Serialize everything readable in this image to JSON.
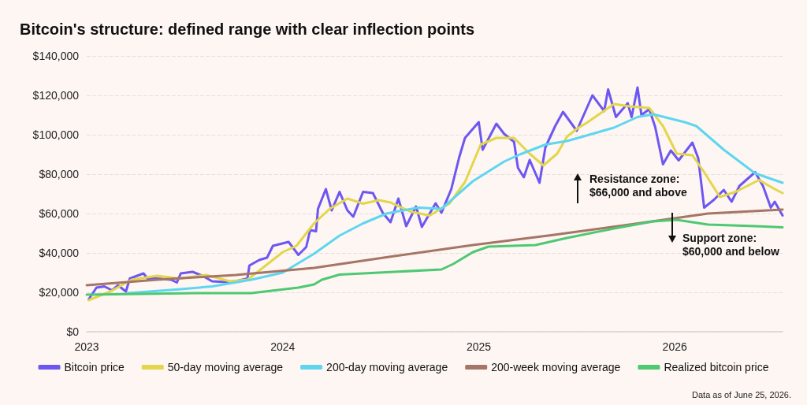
{
  "chart_data": {
    "type": "line",
    "title": "Bitcoin's structure: defined range with clear inflection points",
    "xlim": [
      2023,
      2026.55
    ],
    "xticks": [
      2023,
      2024,
      2025,
      2026
    ],
    "ylim": [
      0,
      140000
    ],
    "yticks": [
      {
        "value": 0,
        "label": "$0"
      },
      {
        "value": 20000,
        "label": "$20,000"
      },
      {
        "value": 40000,
        "label": "$40,000"
      },
      {
        "value": 60000,
        "label": "$60,000"
      },
      {
        "value": 80000,
        "label": "$80,000"
      },
      {
        "value": 100000,
        "label": "$100,000"
      },
      {
        "value": 120000,
        "label": "$120,000"
      },
      {
        "value": 140000,
        "label": "$140,000"
      }
    ],
    "grid": "y",
    "legend": "bottom",
    "marker": "none",
    "line_style": "solid",
    "series": [
      {
        "name": "Bitcoin price",
        "color": "#6e57f0",
        "x": [
          2023.01,
          2023.05,
          2023.09,
          2023.13,
          2023.16,
          2023.2,
          2023.22,
          2023.29,
          2023.31,
          2023.36,
          2023.43,
          2023.46,
          2023.48,
          2023.54,
          2023.59,
          2023.64,
          2023.71,
          2023.76,
          2023.82,
          2023.83,
          2023.88,
          2023.92,
          2023.95,
          2024.03,
          2024.08,
          2024.12,
          2024.14,
          2024.17,
          2024.18,
          2024.22,
          2024.25,
          2024.29,
          2024.33,
          2024.36,
          2024.41,
          2024.46,
          2024.51,
          2024.55,
          2024.59,
          2024.63,
          2024.68,
          2024.71,
          2024.78,
          2024.81,
          2024.86,
          2024.9,
          2024.93,
          2025.0,
          2025.02,
          2025.09,
          2025.13,
          2025.18,
          2025.2,
          2025.23,
          2025.26,
          2025.31,
          2025.34,
          2025.39,
          2025.43,
          2025.5,
          2025.58,
          2025.64,
          2025.66,
          2025.7,
          2025.76,
          2025.78,
          2025.81,
          2025.83,
          2025.87,
          2025.9,
          2025.94,
          2025.98,
          2026.02,
          2026.09,
          2026.12,
          2026.15,
          2026.2,
          2026.25,
          2026.29,
          2026.33,
          2026.41,
          2026.45,
          2026.49,
          2026.51,
          2026.55
        ],
        "values": [
          16400,
          22400,
          23000,
          21000,
          23600,
          20400,
          27000,
          29600,
          27000,
          27000,
          26400,
          25000,
          29600,
          30400,
          28400,
          25600,
          25200,
          25600,
          27000,
          33600,
          36400,
          37600,
          43600,
          45600,
          39000,
          43000,
          51600,
          51000,
          62400,
          72400,
          61600,
          71000,
          61600,
          58400,
          71000,
          70400,
          60400,
          55600,
          67600,
          53600,
          63600,
          53200,
          65200,
          60400,
          72400,
          88400,
          98400,
          106400,
          92400,
          105600,
          100400,
          96400,
          83200,
          78400,
          87200,
          75600,
          93600,
          104400,
          111600,
          102000,
          120000,
          112000,
          123000,
          109000,
          116000,
          109000,
          124000,
          110000,
          113000,
          104000,
          85000,
          92000,
          87000,
          96000,
          88000,
          63000,
          67000,
          72000,
          66000,
          74000,
          81000,
          74000,
          63000,
          66000,
          59000
        ]
      },
      {
        "name": "50-day moving average",
        "color": "#e3d64a",
        "x": [
          2023.01,
          2023.12,
          2023.23,
          2023.36,
          2023.47,
          2023.61,
          2023.73,
          2023.82,
          2023.88,
          2024.0,
          2024.07,
          2024.16,
          2024.24,
          2024.33,
          2024.41,
          2024.49,
          2024.55,
          2024.65,
          2024.75,
          2024.85,
          2024.93,
          2025.01,
          2025.09,
          2025.18,
          2025.26,
          2025.33,
          2025.4,
          2025.45,
          2025.5,
          2025.55,
          2025.69,
          2025.77,
          2025.87,
          2025.94,
          2026.01,
          2026.09,
          2026.15,
          2026.23,
          2026.31,
          2026.43,
          2026.51,
          2026.55
        ],
        "values": [
          16000,
          20400,
          26400,
          28400,
          27000,
          28800,
          25600,
          26400,
          31000,
          40400,
          43600,
          55000,
          62400,
          67600,
          65000,
          66800,
          65600,
          61000,
          59000,
          65000,
          76000,
          95000,
          98400,
          98400,
          90400,
          84400,
          90400,
          99000,
          103000,
          106000,
          115600,
          114400,
          113600,
          104400,
          90400,
          89600,
          81000,
          68400,
          71000,
          77000,
          72400,
          70400
        ]
      },
      {
        "name": "200-day moving average",
        "color": "#5fd6f0",
        "x": [
          2023.21,
          2023.48,
          2023.64,
          2023.84,
          2024.0,
          2024.16,
          2024.29,
          2024.41,
          2024.53,
          2024.69,
          2024.81,
          2024.97,
          2025.13,
          2025.21,
          2025.34,
          2025.45,
          2025.55,
          2025.69,
          2025.81,
          2025.89,
          2026.05,
          2026.11,
          2026.25,
          2026.41,
          2026.55
        ],
        "values": [
          19600,
          21600,
          23000,
          26400,
          30000,
          39600,
          48800,
          55000,
          60000,
          63000,
          62400,
          76400,
          86400,
          90000,
          95000,
          96800,
          99600,
          103600,
          109000,
          110400,
          106400,
          104400,
          92400,
          80400,
          75600
        ]
      },
      {
        "name": "200-week moving average",
        "color": "#a57565",
        "x": [
          2023.0,
          2023.36,
          2023.76,
          2024.16,
          2024.57,
          2024.97,
          2025.37,
          2025.77,
          2026.17,
          2026.55
        ],
        "values": [
          23600,
          26400,
          28800,
          32400,
          38400,
          44000,
          49000,
          54400,
          60000,
          62000
        ]
      },
      {
        "name": "Realized bitcoin price",
        "color": "#4fc872",
        "x": [
          2023.0,
          2023.56,
          2023.84,
          2024.08,
          2024.16,
          2024.2,
          2024.29,
          2024.57,
          2024.81,
          2024.87,
          2024.97,
          2025.05,
          2025.29,
          2025.45,
          2025.69,
          2025.89,
          2026.01,
          2026.17,
          2026.41,
          2026.55
        ],
        "values": [
          18800,
          19600,
          19600,
          22400,
          24000,
          26400,
          29000,
          30400,
          31600,
          34400,
          40400,
          43200,
          44000,
          47600,
          52400,
          56000,
          56800,
          54400,
          53600,
          53000
        ]
      }
    ],
    "annotations": [
      "Resistance zone:\n$66,000 and above",
      "Support zone:\n$60,000 and below",
      "Data as of June 25, 2026."
    ]
  }
}
